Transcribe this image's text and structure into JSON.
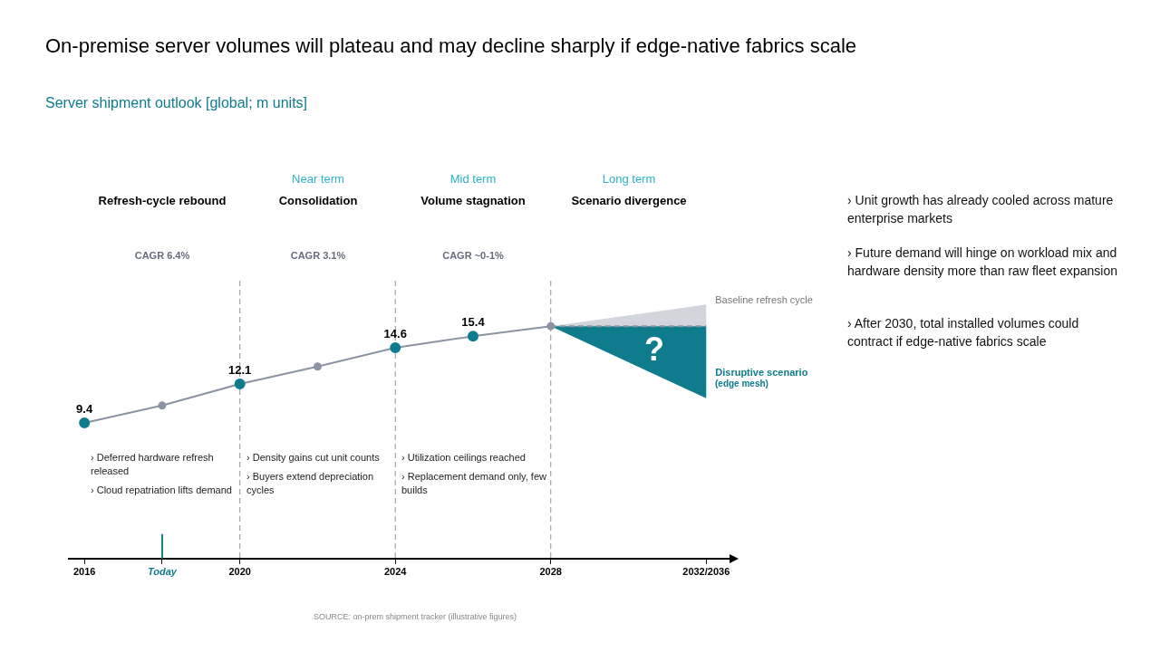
{
  "chart_data": {
    "type": "line",
    "title": "On-premise server volumes will plateau and may decline sharply if edge-native fabrics scale",
    "subtitle": "Server shipment outlook [global; m units]",
    "xlim": [
      2015.6,
      2032.6
    ],
    "tick_labels": "x",
    "grid": false,
    "legend": false,
    "xticks": [
      2016,
      {
        "value": 2018,
        "label": "Today"
      },
      2020,
      2024,
      2028,
      {
        "value": 2032,
        "label": "2032/2036"
      }
    ],
    "series": [
      {
        "type": "area",
        "name": "Baseline refresh cycle",
        "color": "#d2d5db",
        "x": [
          2028,
          2032
        ],
        "values": [
          16.1,
          17.6
        ]
      },
      {
        "type": "area",
        "name": "Disruptive scenario",
        "color": "#0e7c8c",
        "x": [
          2028,
          2032
        ],
        "values": [
          16.1,
          11.1
        ]
      },
      {
        "type": "line",
        "color": "#8c93a3",
        "line_style": "dashed",
        "x": [
          2028,
          2032
        ],
        "values": [
          16.1,
          16.1
        ]
      },
      {
        "type": "line",
        "color": "#8c93a3",
        "marker": "circle",
        "x": [
          2016,
          2018,
          2020,
          2022,
          2024,
          2026,
          2028
        ],
        "values": [
          9.4,
          10.6,
          12.1,
          13.3,
          14.6,
          15.4,
          16.1
        ],
        "colors": [
          "#0e7c8c",
          "#8c93a3",
          "#0e7c8c",
          "#8c93a3",
          "#0e7c8c",
          "#0e7c8c",
          "#8c93a3"
        ],
        "value_labels": [
          "9.4",
          null,
          "12.1",
          null,
          "14.6",
          "15.4",
          null
        ]
      }
    ],
    "ref_lines": [
      {
        "axis": "x",
        "value": 2020,
        "color": "#8c93a3",
        "line_style": "dashed"
      },
      {
        "axis": "x",
        "value": 2024,
        "color": "#8c93a3",
        "line_style": "dashed"
      },
      {
        "axis": "x",
        "value": 2028,
        "color": "#8c93a3",
        "line_style": "dashed"
      },
      {
        "axis": "x",
        "value": 2018,
        "color": "#0e7c8c",
        "line_style": "solid"
      }
    ],
    "annotations": [
      "Near term",
      "Mid term",
      "Long term",
      "Refresh-cycle rebound",
      "Consolidation",
      "Volume stagnation",
      "Scenario divergence",
      "CAGR 6.4%",
      "CAGR 3.1%",
      "CAGR ~0-1%",
      "› Deferred hardware refresh released",
      "› Cloud repatriation lifts demand",
      "› Density gains cut unit counts",
      "› Buyers extend depreciation cycles",
      "› Utilization ceilings reached",
      "› Replacement demand only, few builds",
      "› Unit growth has already cooled across mature enterprise markets",
      "› Future demand will hinge on workload mix and hardware density more than raw fleet expansion",
      "› After 2030, total installed volumes could contract if edge-native fabrics scale",
      "(edge mesh)",
      "?",
      "SOURCE: on-prem shipment tracker (illustrative figures)"
    ]
  }
}
